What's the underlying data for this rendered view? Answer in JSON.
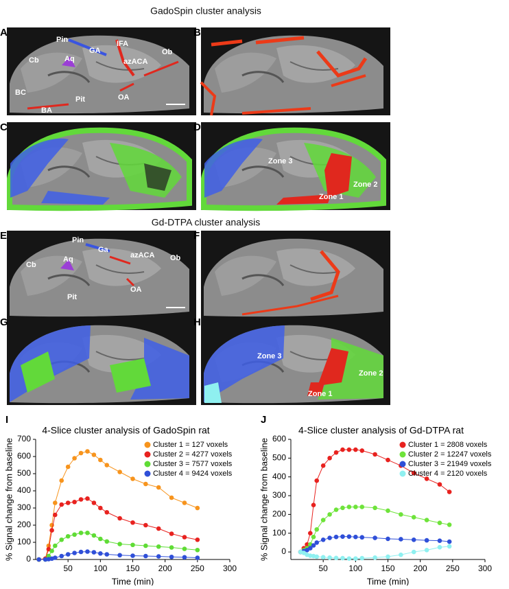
{
  "sections": [
    {
      "title": "GadoSpin cluster analysis"
    },
    {
      "title": "Gd-DTPA cluster analysis"
    }
  ],
  "panels": [
    {
      "letter": "A",
      "labels": [
        "Pin",
        "GA",
        "IFA",
        "Cb",
        "Aq",
        "azACA",
        "Ob",
        "BC",
        "OA",
        "Pit",
        "BA"
      ]
    },
    {
      "letter": "B",
      "labels": []
    },
    {
      "letter": "C",
      "labels": []
    },
    {
      "letter": "D",
      "labels": [
        "Zone 3",
        "Zone 2",
        "Zone 1"
      ]
    },
    {
      "letter": "E",
      "labels": [
        "Pin",
        "Ga",
        "Cb",
        "Aq",
        "azACA",
        "Ob",
        "OA",
        "Pit"
      ]
    },
    {
      "letter": "F",
      "labels": []
    },
    {
      "letter": "G",
      "labels": []
    },
    {
      "letter": "H",
      "labels": [
        "Zone 3",
        "Zone 2",
        "Zone 1"
      ]
    }
  ],
  "chart_data": [
    {
      "type": "line",
      "panel": "I",
      "title": "4-Slice cluster analysis of GadoSpin rat",
      "x_label": "Time (min)",
      "y_label": "% Signal change from baseline",
      "xlim": [
        0,
        300
      ],
      "xticks": [
        50,
        100,
        150,
        200,
        250,
        300
      ],
      "ylim": [
        0,
        700
      ],
      "yticks": [
        0,
        100,
        200,
        300,
        400,
        500,
        600,
        700
      ],
      "x": [
        5,
        15,
        20,
        25,
        30,
        40,
        50,
        60,
        70,
        80,
        90,
        100,
        110,
        130,
        150,
        170,
        190,
        210,
        230,
        250
      ],
      "series": [
        {
          "name": "Cluster 1 = 127 voxels",
          "color": "#f7941d",
          "values": [
            0,
            5,
            80,
            200,
            330,
            460,
            540,
            590,
            620,
            630,
            610,
            580,
            550,
            510,
            470,
            440,
            420,
            360,
            330,
            300
          ]
        },
        {
          "name": "Cluster 2 = 4277 voxels",
          "color": "#e8221f",
          "values": [
            0,
            5,
            60,
            170,
            260,
            320,
            330,
            335,
            350,
            355,
            330,
            300,
            275,
            240,
            215,
            200,
            180,
            150,
            130,
            115
          ]
        },
        {
          "name": "Cluster 3 = 7577 voxels",
          "color": "#5fdc35",
          "values": [
            0,
            0,
            20,
            50,
            80,
            115,
            135,
            145,
            155,
            155,
            140,
            120,
            105,
            90,
            85,
            80,
            75,
            70,
            62,
            55
          ]
        },
        {
          "name": "Cluster 4 = 9424 voxels",
          "color": "#2f4fd8",
          "values": [
            0,
            0,
            2,
            5,
            10,
            20,
            30,
            38,
            44,
            46,
            42,
            35,
            30,
            25,
            22,
            20,
            18,
            15,
            13,
            10
          ]
        }
      ]
    },
    {
      "type": "line",
      "panel": "J",
      "title": "4-Slice cluster analysis of Gd-DTPA rat",
      "x_label": "Time (min)",
      "y_label": "% Signal change from baseline",
      "xlim": [
        0,
        300
      ],
      "xticks": [
        50,
        100,
        150,
        200,
        250,
        300
      ],
      "ylim": [
        -40,
        600
      ],
      "yticks": [
        0,
        100,
        200,
        300,
        400,
        500,
        600
      ],
      "x": [
        15,
        20,
        25,
        30,
        35,
        40,
        50,
        60,
        70,
        80,
        90,
        100,
        110,
        130,
        150,
        170,
        190,
        210,
        230,
        245
      ],
      "series": [
        {
          "name": "Cluster 1 = 2808 voxels",
          "color": "#e8221f",
          "values": [
            0,
            20,
            40,
            100,
            250,
            380,
            460,
            500,
            530,
            545,
            545,
            545,
            540,
            520,
            490,
            460,
            420,
            390,
            360,
            320
          ]
        },
        {
          "name": "Cluster 2 = 12247 voxels",
          "color": "#6ee33a",
          "values": [
            0,
            10,
            20,
            40,
            80,
            120,
            170,
            200,
            225,
            235,
            240,
            240,
            240,
            235,
            220,
            200,
            185,
            170,
            155,
            145
          ]
        },
        {
          "name": "Cluster 3 = 21949 voxels",
          "color": "#2f4fd8",
          "values": [
            0,
            5,
            10,
            20,
            35,
            50,
            65,
            75,
            80,
            82,
            82,
            80,
            78,
            75,
            70,
            68,
            65,
            62,
            60,
            55
          ]
        },
        {
          "name": "Cluster 4 = 2120 voxels",
          "color": "#8ff0f0",
          "values": [
            0,
            -5,
            -15,
            -20,
            -22,
            -25,
            -28,
            -30,
            -32,
            -33,
            -35,
            -35,
            -33,
            -30,
            -25,
            -15,
            0,
            10,
            25,
            30
          ]
        }
      ]
    }
  ]
}
